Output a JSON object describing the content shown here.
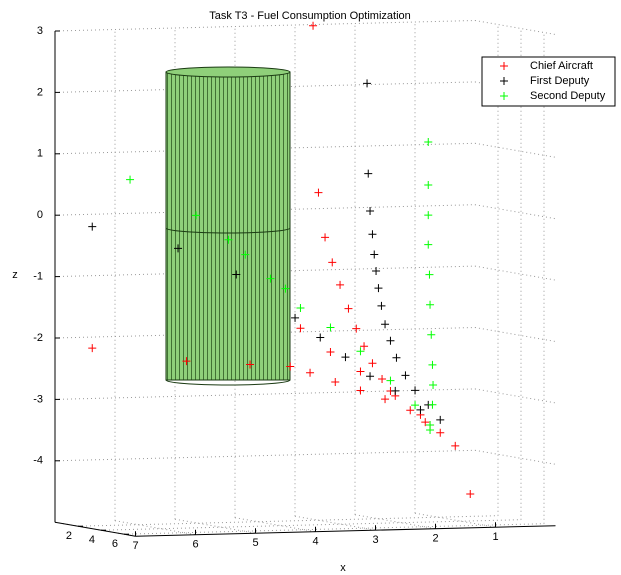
{
  "chart_data": {
    "type": "scatter3d",
    "title": "Task T3 - Fuel Consumption Optimization",
    "x_label": "x",
    "z_label": "z",
    "xlim": [
      0,
      7
    ],
    "ylim": [
      0,
      7
    ],
    "zlim": [
      -5,
      3
    ],
    "xticks": [
      1,
      2,
      3,
      4,
      5,
      6,
      7
    ],
    "yticks": [
      2,
      4,
      6
    ],
    "zticks": [
      -4,
      -3,
      -2,
      -1,
      0,
      1,
      2,
      3
    ],
    "grid": true,
    "legend": "upper right",
    "series": [
      {
        "name": "Chief Aircraft",
        "color": "#ff0000",
        "x": [
          7.05,
          5.48,
          4.42,
          3.75,
          3.37,
          3.28,
          3.17,
          3.05,
          2.92,
          2.78,
          2.65,
          2.52,
          2.38,
          2.22,
          2.0,
          1.75,
          1.5,
          1.25,
          1.0,
          0.75,
          3.42,
          3.0,
          2.58,
          2.17,
          1.42,
          3.58,
          3.08,
          2.58,
          2.08,
          1.58
        ],
        "y": [
          3.5,
          3.5,
          3.5,
          3.5,
          3.5,
          3.5,
          3.5,
          3.5,
          3.5,
          3.5,
          3.5,
          3.5,
          3.5,
          3.5,
          3.5,
          3.5,
          3.5,
          3.5,
          3.5,
          3.5,
          3.5,
          3.5,
          3.5,
          3.5,
          3.5,
          3.5,
          3.5,
          3.5,
          3.5,
          3.5
        ],
        "z": [
          -2.05,
          -2.3,
          -2.38,
          -2.43,
          3.11,
          0.39,
          -0.34,
          -0.75,
          -1.12,
          -1.51,
          -1.84,
          -2.13,
          -2.41,
          -2.67,
          -2.95,
          -3.19,
          -3.39,
          -3.57,
          -3.79,
          -4.58,
          -2.54,
          -2.7,
          -2.85,
          -3.0,
          -3.44,
          -1.81,
          -2.21,
          -2.54,
          -2.87,
          -3.27
        ]
      },
      {
        "name": "First Deputy",
        "color": "#000000",
        "x": [
          7.05,
          4.65,
          5.62,
          2.47,
          2.45,
          2.42,
          2.38,
          2.35,
          2.32,
          2.28,
          2.23,
          2.17,
          2.08,
          1.98,
          1.83,
          1.67,
          1.45,
          1.25,
          3.67,
          3.25,
          2.83,
          2.42,
          2.0,
          1.58
        ],
        "y": [
          3.5,
          3.5,
          3.5,
          3.5,
          3.5,
          3.5,
          3.5,
          3.5,
          3.5,
          3.5,
          3.5,
          3.5,
          3.5,
          3.5,
          3.5,
          3.5,
          3.5,
          3.5,
          3.5,
          3.5,
          3.5,
          3.5,
          3.5,
          3.5
        ],
        "z": [
          -0.07,
          -0.91,
          -0.46,
          2.15,
          0.68,
          0.07,
          -0.31,
          -0.64,
          -0.91,
          -1.19,
          -1.48,
          -1.78,
          -2.05,
          -2.33,
          -2.62,
          -2.87,
          -3.11,
          -3.36,
          -1.64,
          -1.97,
          -2.3,
          -2.62,
          -2.87,
          -3.19
        ]
      },
      {
        "name": "Second Deputy",
        "color": "#00ff00",
        "x": [
          6.42,
          5.32,
          4.78,
          4.5,
          4.08,
          3.83,
          1.45,
          1.45,
          1.45,
          1.45,
          1.43,
          1.42,
          1.4,
          1.38,
          1.37,
          1.38,
          1.42,
          3.58,
          3.08,
          2.58,
          2.08,
          1.67,
          1.42
        ],
        "y": [
          3.5,
          3.5,
          3.5,
          3.5,
          3.5,
          3.5,
          3.5,
          3.5,
          3.5,
          3.5,
          3.5,
          3.5,
          3.5,
          3.5,
          3.5,
          3.5,
          3.5,
          3.5,
          3.5,
          3.5,
          3.5,
          3.5,
          3.5
        ],
        "z": [
          0.68,
          0.07,
          -0.34,
          -0.59,
          -0.99,
          -1.16,
          1.17,
          0.47,
          -0.02,
          -0.5,
          -0.99,
          -1.48,
          -1.97,
          -2.46,
          -2.79,
          -3.11,
          -3.44,
          -1.48,
          -1.81,
          -2.21,
          -2.7,
          -3.11,
          -3.52
        ]
      }
    ]
  }
}
